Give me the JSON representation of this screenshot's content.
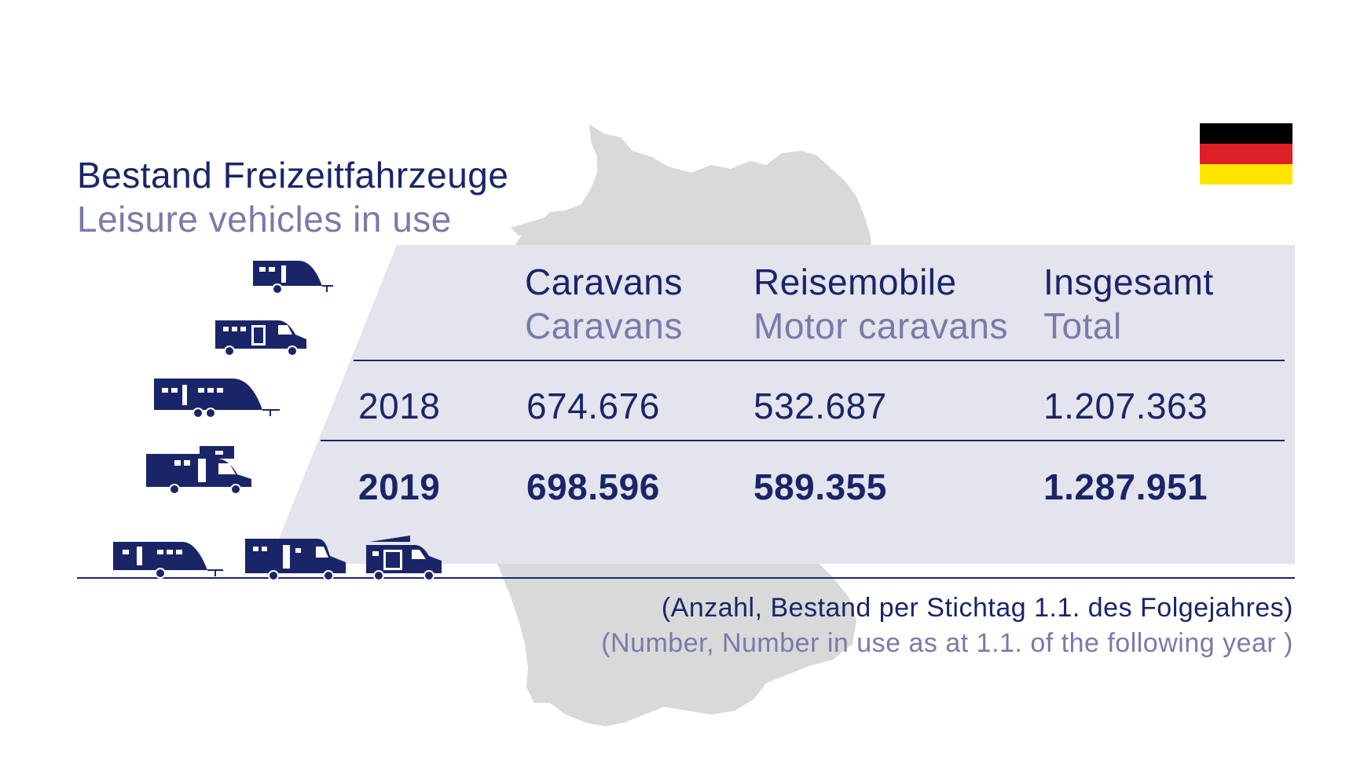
{
  "title": {
    "de": "Bestand Freizeitfahrzeuge",
    "en": "Leisure vehicles in use"
  },
  "flag": {
    "country": "Germany",
    "colors": [
      "#000000",
      "#dd1f26",
      "#ffe500"
    ]
  },
  "colors": {
    "navy": "#1a2568",
    "lavender": "#7a7aaa",
    "panel": "#e4e4ee",
    "map": "#d9d9d9"
  },
  "table": {
    "columns": [
      {
        "de": "Caravans",
        "en": "Caravans"
      },
      {
        "de": "Reisemobile",
        "en": "Motor caravans"
      },
      {
        "de": "Insgesamt",
        "en": "Total"
      }
    ],
    "rows": [
      {
        "year": "2018",
        "values": [
          "674.676",
          "532.687",
          "1.207.363"
        ],
        "bold": false
      },
      {
        "year": "2019",
        "values": [
          "698.596",
          "589.355",
          "1.287.951"
        ],
        "bold": true
      }
    ]
  },
  "footnote": {
    "de": "(Anzahl, Bestand per Stichtag 1.1. des Folgejahres)",
    "en": "(Number, Number in use as at 1.1. of the following year )"
  },
  "chart_data": {
    "type": "table",
    "columns": [
      "Caravans",
      "Reisemobile",
      "Insgesamt"
    ],
    "categories": [
      "2018",
      "2019"
    ],
    "series": [
      {
        "name": "Caravans",
        "values": [
          674676,
          698596
        ]
      },
      {
        "name": "Reisemobile",
        "values": [
          532687,
          589355
        ]
      },
      {
        "name": "Insgesamt",
        "values": [
          1207363,
          1287951
        ]
      }
    ]
  },
  "icons": [
    "caravan-icon",
    "van-icon",
    "twin-axle-caravan-icon",
    "alcove-motorhome-icon",
    "caravan-icon",
    "motorhome-icon",
    "campervan-icon"
  ]
}
